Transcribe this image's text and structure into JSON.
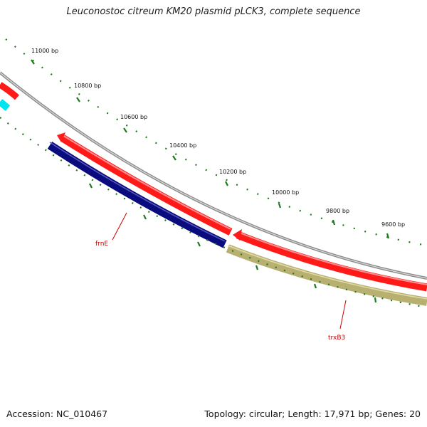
{
  "title": "Leuconostoc citreum KM20 plasmid pLCK3, complete sequence",
  "footer": {
    "accession": "Accession: NC_010467",
    "summary": "Topology: circular; Length: 17,971 bp; Genes: 20"
  },
  "map": {
    "sequence_length_bp": 17971,
    "ruler_ticks": [
      {
        "label": "11000 bp"
      },
      {
        "label": "10800 bp"
      },
      {
        "label": "10600 bp"
      },
      {
        "label": "10400 bp"
      },
      {
        "label": "10200 bp"
      },
      {
        "label": "10000 bp"
      },
      {
        "label": "9800 bp"
      },
      {
        "label": "9600 bp"
      }
    ],
    "genes": [
      {
        "name": "frnE",
        "strand": "reverse",
        "color": "#0b0b80"
      },
      {
        "name": "trxB3",
        "strand": "reverse",
        "color": "#b8b070"
      },
      {
        "name": "",
        "strand": "forward",
        "color": "#ff1a1a"
      },
      {
        "name": "",
        "strand": "reverse",
        "color": "#00e5ee"
      }
    ],
    "colors": {
      "backbone": "#8c8c8c",
      "ticks": "#1f7a1f",
      "forward_gene": "#ff1a1a",
      "label": "#cc0000"
    }
  }
}
